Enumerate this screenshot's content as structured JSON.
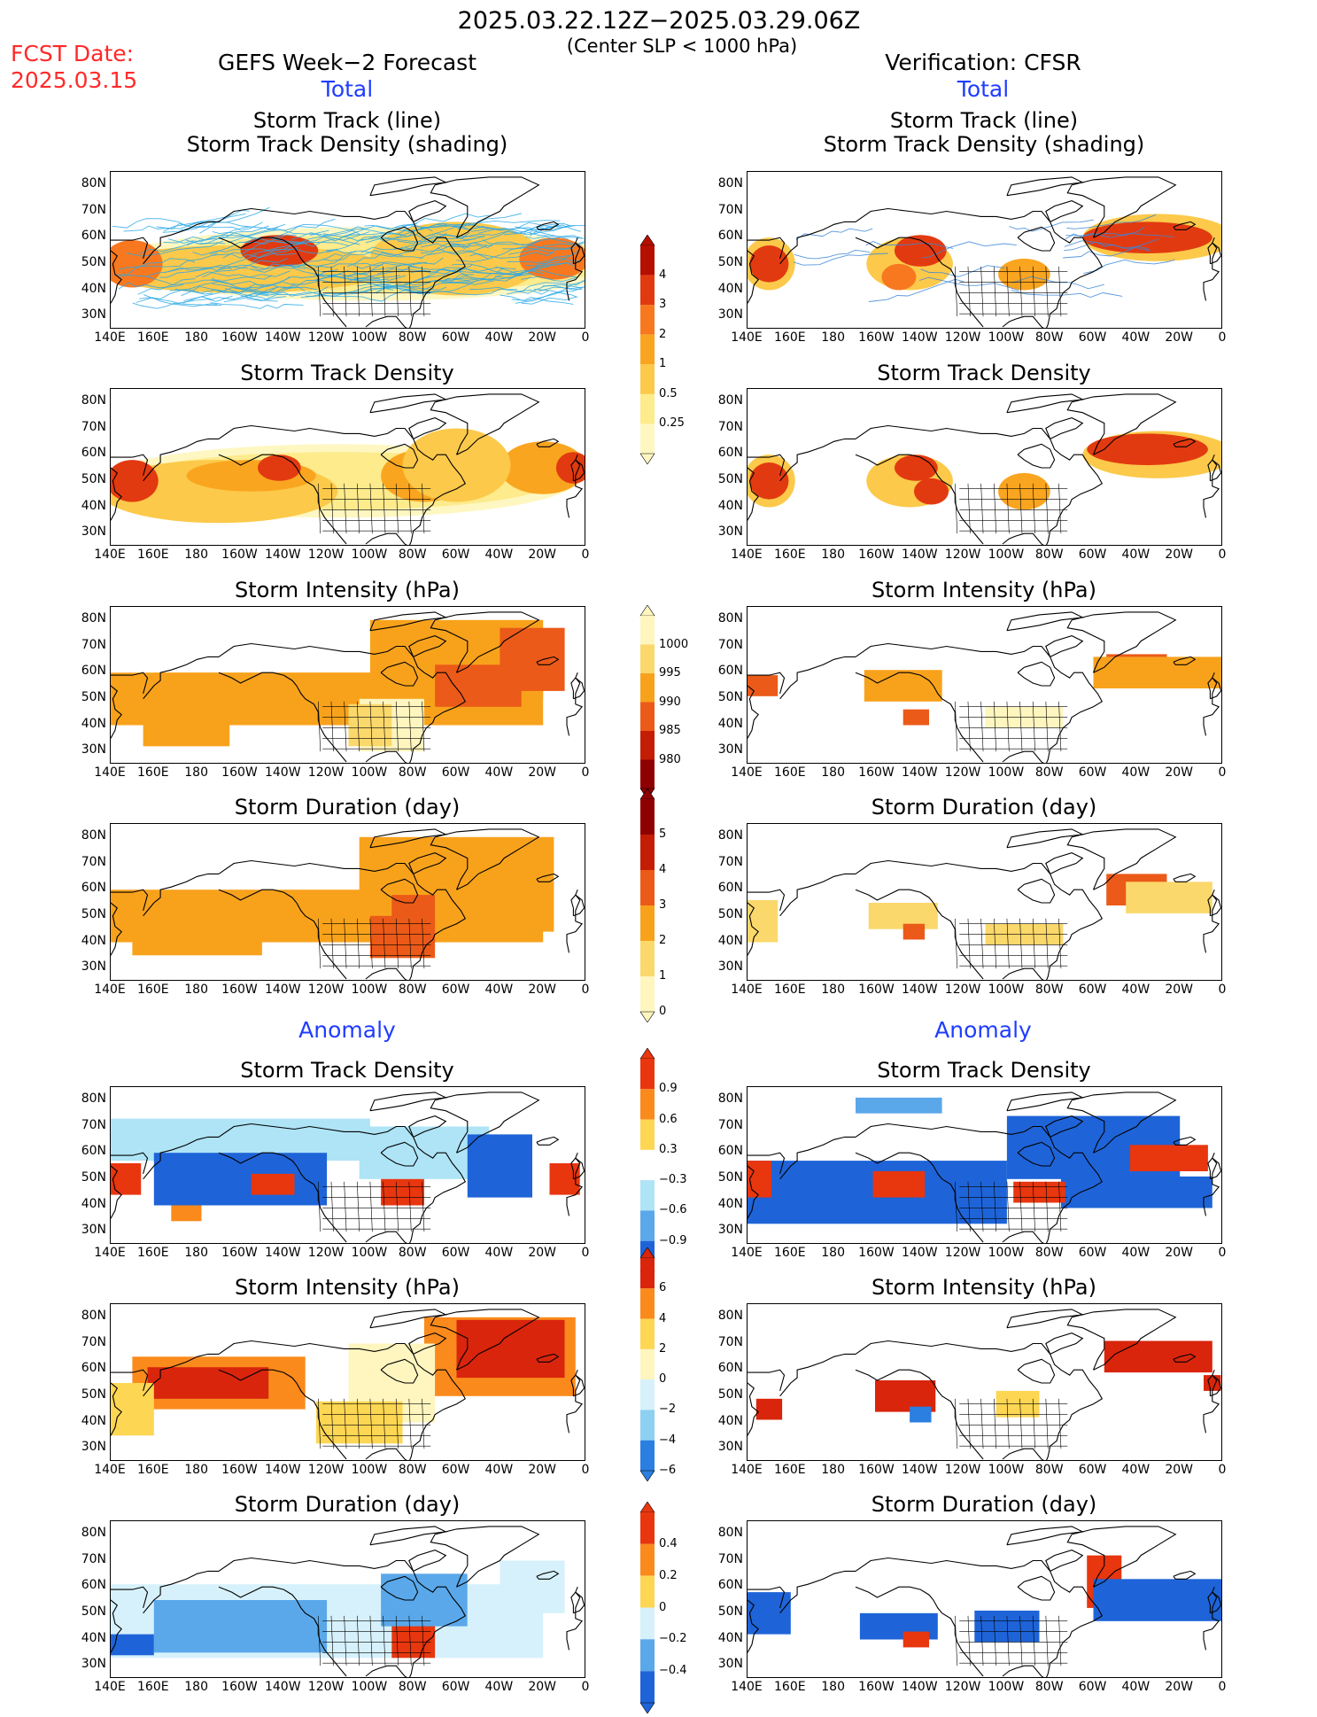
{
  "header": {
    "title": "2025.03.22.12Z−2025.03.29.06Z",
    "subtitle": "(Center SLP < 1000 hPa)",
    "fcst_label": "FCST Date:",
    "fcst_date": "2025.03.15",
    "left_model": "GEFS Week−2 Forecast",
    "right_model": "Verification: CFSR",
    "total_label": "Total",
    "anomaly_label": "Anomaly"
  },
  "panel_titles": {
    "track": "Storm Track (line)\nStorm Track Density (shading)",
    "density": "Storm Track Density",
    "intensity": "Storm Intensity (hPa)",
    "duration": "Storm Duration (day)"
  },
  "axes": {
    "lat_labels": [
      "80N",
      "70N",
      "60N",
      "50N",
      "40N",
      "30N"
    ],
    "lon_labels": [
      "140E",
      "160E",
      "180",
      "160W",
      "140W",
      "120W",
      "100W",
      "80W",
      "60W",
      "40W",
      "20W",
      "0"
    ]
  },
  "colorbars": {
    "density_total": {
      "ticks": [
        "4",
        "3",
        "2",
        "1",
        "0.5",
        "0.25"
      ],
      "colors": [
        "#b50f00",
        "#e23a10",
        "#f87820",
        "#faa51f",
        "#fcc94a",
        "#fdeb8c",
        "#fff7c2"
      ]
    },
    "intensity_total": {
      "ticks": [
        "1000",
        "995",
        "990",
        "985",
        "980"
      ],
      "colors": [
        "#fff5bf",
        "#fbd86b",
        "#f8a21c",
        "#eb5a18",
        "#c41d05",
        "#8f0000"
      ]
    },
    "duration_total": {
      "ticks": [
        "5",
        "4",
        "3",
        "2",
        "1",
        "0"
      ],
      "colors": [
        "#8f0000",
        "#c41d05",
        "#eb5a18",
        "#f8a21c",
        "#fbd86b",
        "#fff5bf"
      ]
    },
    "density_anom": {
      "ticks": [
        "0.9",
        "0.6",
        "0.3",
        "−0.3",
        "−0.6",
        "−0.9"
      ],
      "colors": [
        "#e8360f",
        "#fb8a1c",
        "#fdd653",
        "#ffffff",
        "#aee4f6",
        "#5aa8ea",
        "#1e64d8"
      ]
    },
    "intensity_anom": {
      "ticks": [
        "6",
        "4",
        "2",
        "0",
        "−2",
        "−4",
        "−6"
      ],
      "colors": [
        "#d9250c",
        "#fb8a1c",
        "#fdd653",
        "#fff5bf",
        "#d6f1fb",
        "#8dd0f1",
        "#2b7fe0"
      ]
    },
    "duration_anom": {
      "ticks": [
        "0.4",
        "0.2",
        "0",
        "−0.2",
        "−0.4"
      ],
      "colors": [
        "#e8360f",
        "#fb8a1c",
        "#fdd653",
        "#d6f1fb",
        "#5aa8ea",
        "#1e64d8"
      ]
    }
  },
  "colors": {
    "ocean": "#ffffff",
    "coast": "#000000",
    "track_lines_forecast": "#2aa8e6",
    "track_lines_verify": "#3a86d8"
  }
}
